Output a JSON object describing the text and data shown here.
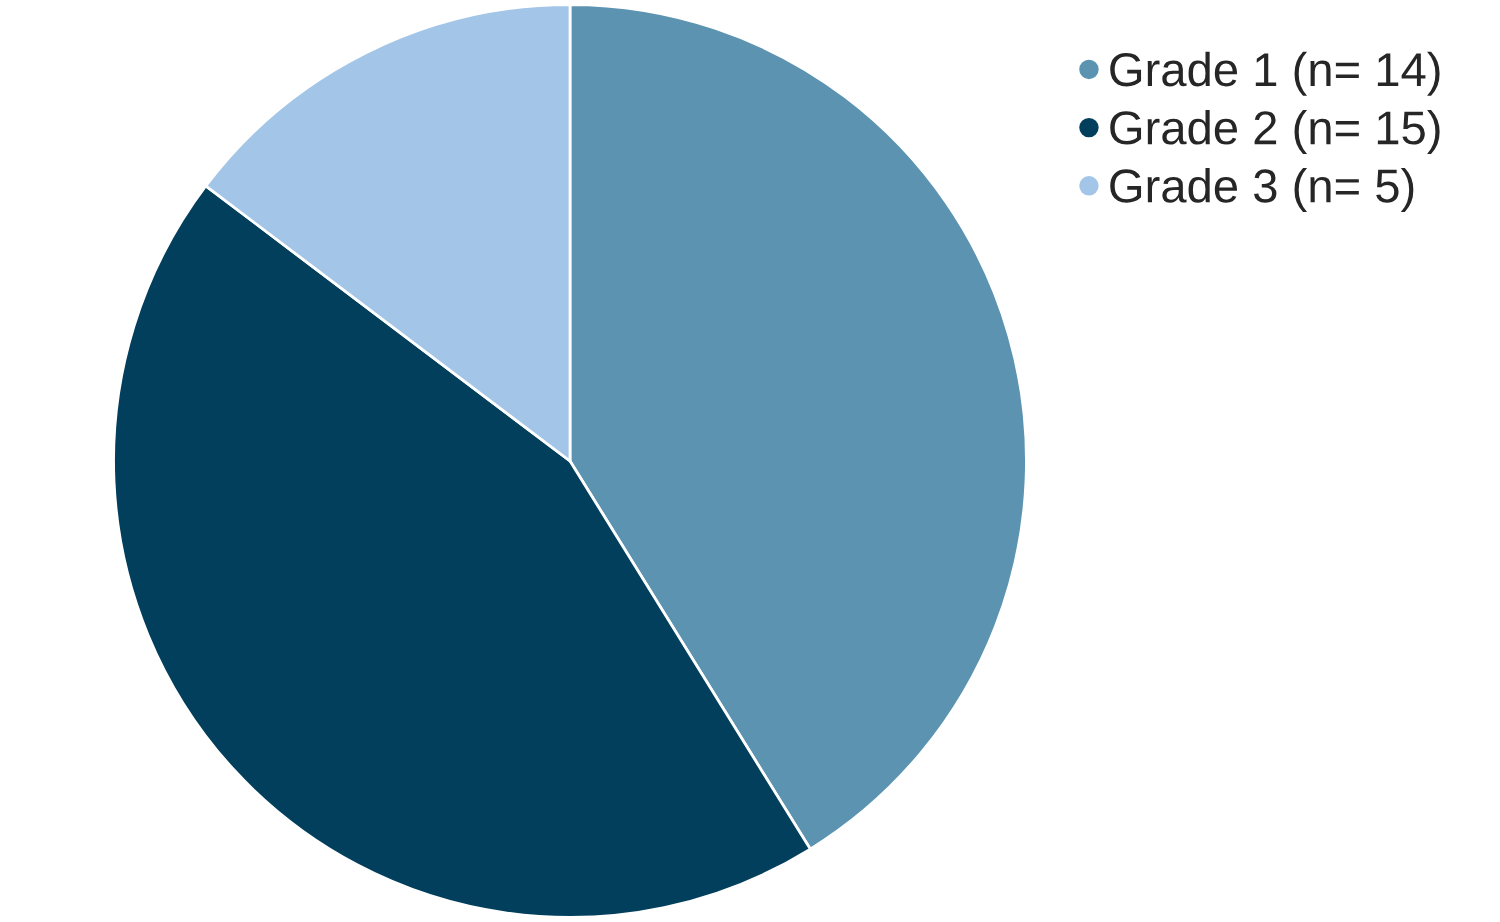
{
  "chart_data": {
    "type": "pie",
    "categories": [
      "Grade 1 (n= 14)",
      "Grade 2 (n= 15)",
      "Grade 3 (n= 5)"
    ],
    "values": [
      14,
      15,
      5
    ],
    "colors": [
      "#5b93b1",
      "#023f5c",
      "#a3c6e8"
    ],
    "legend": "top right"
  }
}
